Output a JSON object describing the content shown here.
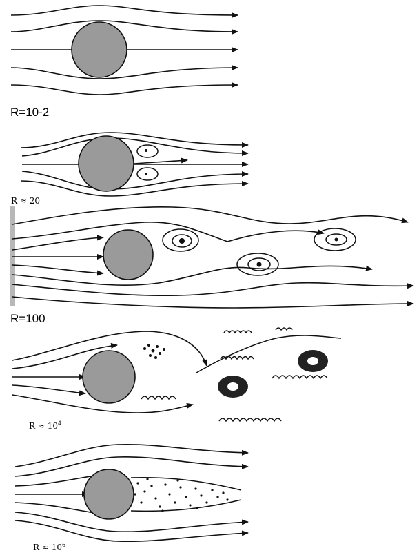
{
  "panels": [
    {
      "id": "p1",
      "label": "R=10-2"
    },
    {
      "id": "p2",
      "label": "R ≈ 20"
    },
    {
      "id": "p3",
      "label": "R=100"
    },
    {
      "id": "p4",
      "label_base": "R ≈ 10",
      "label_exp": "4"
    },
    {
      "id": "p5",
      "label_base": "R ≈ 10",
      "label_exp": "6"
    }
  ],
  "colors": {
    "cylinder": "#9a9a9a",
    "line": "#111111"
  }
}
